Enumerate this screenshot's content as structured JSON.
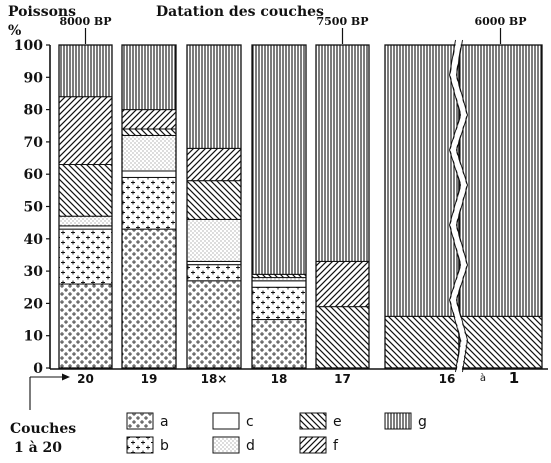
{
  "header": {
    "left_title": "Poissons",
    "center_title": "Datation des couches"
  },
  "footer": {
    "couches_label_1": "Couches",
    "couches_label_2": "1 à 20"
  },
  "chart_data": {
    "type": "bar",
    "stacked": true,
    "y_unit": "%",
    "ylim": [
      0,
      100
    ],
    "yticks": [
      0,
      10,
      20,
      30,
      40,
      50,
      60,
      70,
      80,
      90,
      100
    ],
    "dates": [
      {
        "label": "8000 BP",
        "category": "20"
      },
      {
        "label": "7500 BP",
        "category": "17"
      },
      {
        "label": "6000 BP",
        "category": "1"
      }
    ],
    "categories": [
      "20",
      "19",
      "18×",
      "18",
      "17",
      "16",
      "1"
    ],
    "between_label": "à",
    "series": [
      {
        "name": "a",
        "values": [
          26,
          43,
          27,
          15,
          0,
          0,
          0
        ]
      },
      {
        "name": "b",
        "values": [
          17,
          16,
          5,
          10,
          0,
          0,
          0
        ]
      },
      {
        "name": "c",
        "values": [
          1,
          2,
          1,
          2,
          0,
          0,
          0
        ]
      },
      {
        "name": "d",
        "values": [
          3,
          11,
          13,
          1,
          0,
          0,
          0
        ]
      },
      {
        "name": "e",
        "values": [
          16,
          2,
          12,
          1,
          19,
          16,
          16
        ]
      },
      {
        "name": "f",
        "values": [
          21,
          6,
          10,
          0,
          14,
          0,
          0
        ]
      },
      {
        "name": "g",
        "values": [
          16,
          20,
          32,
          71,
          67,
          84,
          84
        ]
      }
    ],
    "legend": [
      {
        "key": "a",
        "label": "a"
      },
      {
        "key": "b",
        "label": "b"
      },
      {
        "key": "c",
        "label": "c"
      },
      {
        "key": "d",
        "label": "d"
      },
      {
        "key": "e",
        "label": "e"
      },
      {
        "key": "f",
        "label": "f"
      },
      {
        "key": "g",
        "label": "g"
      }
    ],
    "legend_placement": "bottom"
  }
}
